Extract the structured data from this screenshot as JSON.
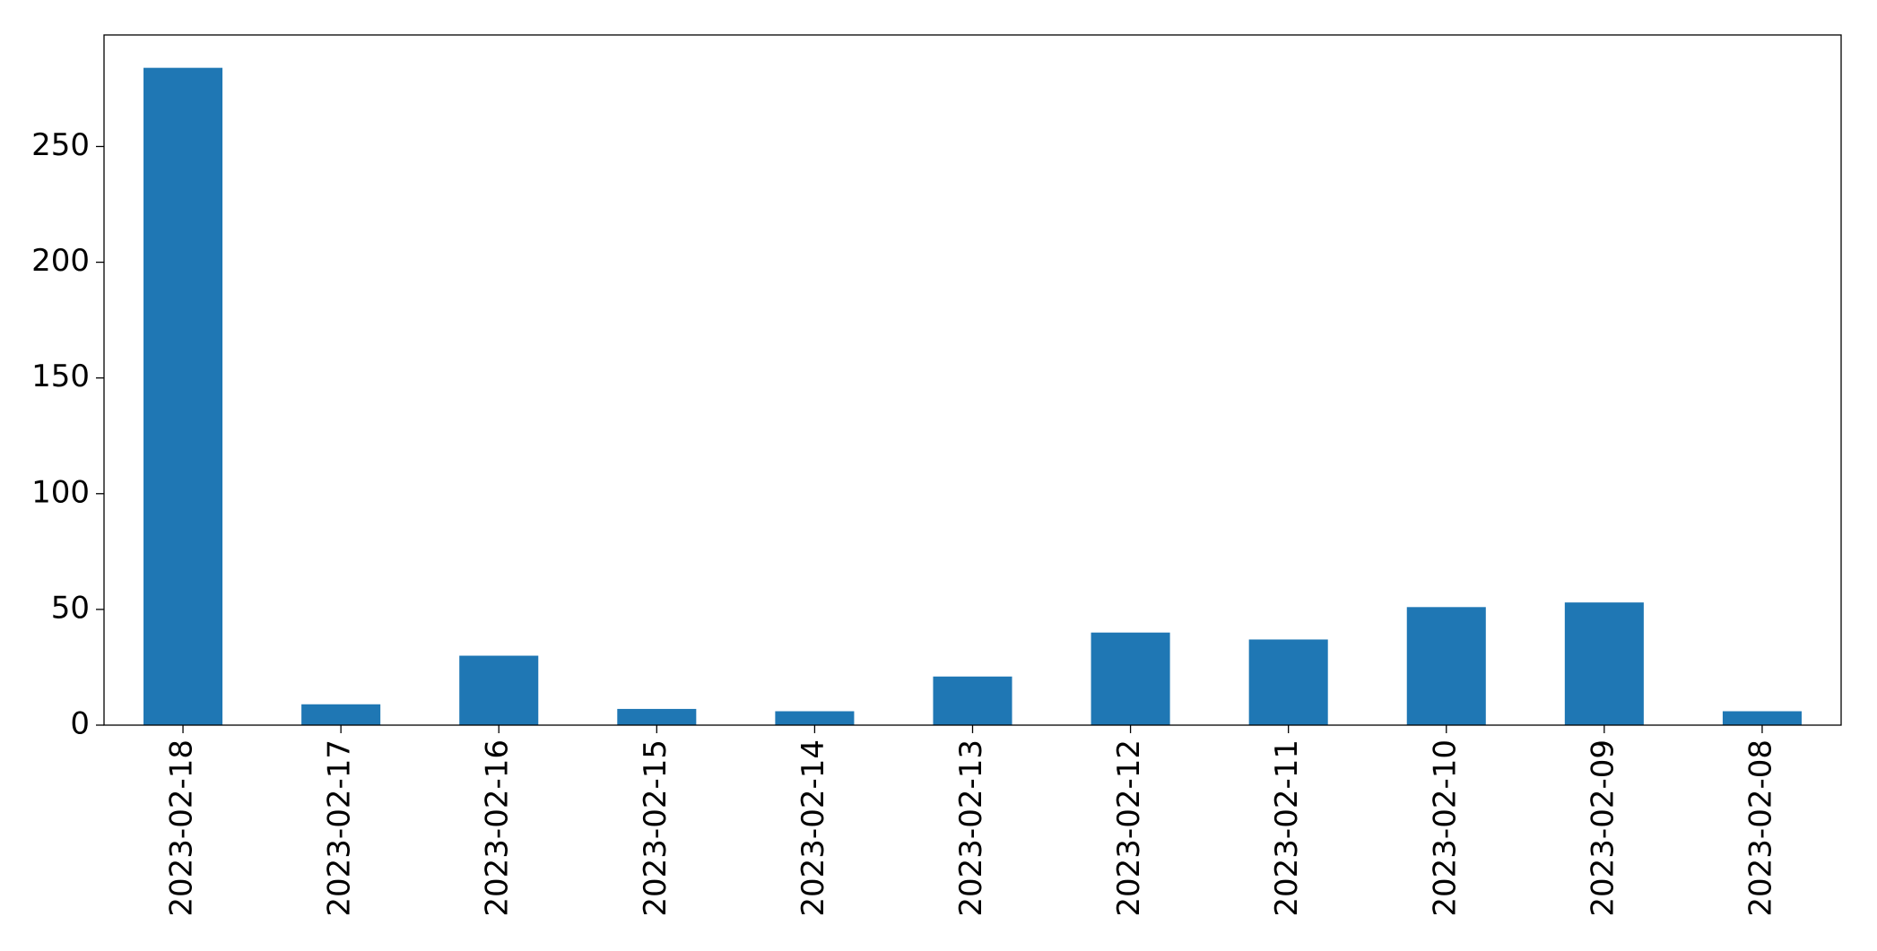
{
  "chart_data": {
    "type": "bar",
    "categories": [
      "2023-02-18",
      "2023-02-17",
      "2023-02-16",
      "2023-02-15",
      "2023-02-14",
      "2023-02-13",
      "2023-02-12",
      "2023-02-11",
      "2023-02-10",
      "2023-02-09",
      "2023-02-08"
    ],
    "values": [
      284,
      9,
      30,
      7,
      6,
      21,
      40,
      37,
      51,
      53,
      6
    ],
    "color": "#1f77b4",
    "ylim": [
      0,
      298.2
    ],
    "yticks": [
      0,
      50,
      100,
      150,
      200,
      250
    ],
    "grid": false
  }
}
